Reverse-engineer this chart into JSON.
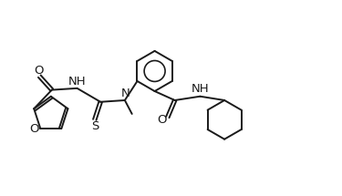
{
  "background_color": "#ffffff",
  "line_color": "#1a1a1a",
  "line_width": 1.4,
  "font_size": 9.5,
  "fig_width": 3.75,
  "fig_height": 2.15,
  "xlim": [
    0,
    10.5
  ],
  "ylim": [
    0,
    5.8
  ]
}
